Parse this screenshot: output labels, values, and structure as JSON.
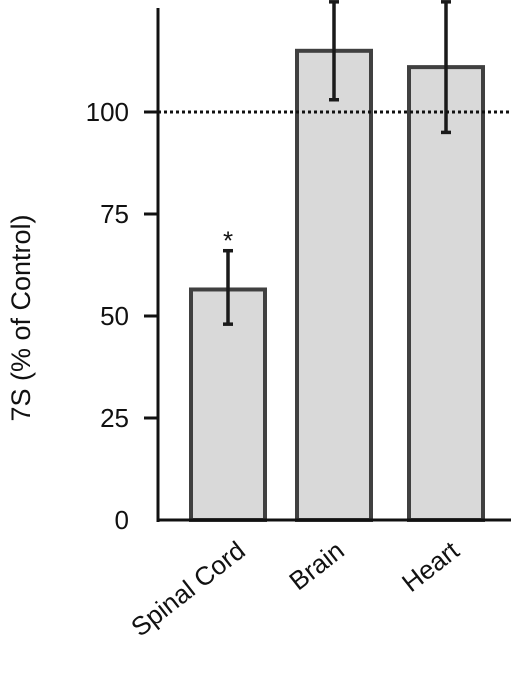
{
  "chart_data": {
    "type": "bar",
    "title": "",
    "xlabel": "",
    "ylabel": "7S (% of Control)",
    "categories": [
      "Spinal Cord",
      "Brain",
      "Heart"
    ],
    "values": [
      56.5,
      115,
      111
    ],
    "error_low": [
      48,
      103,
      95
    ],
    "error_high": [
      66,
      127,
      127
    ],
    "annotations": [
      "*",
      "",
      ""
    ],
    "yticks": [
      "0",
      "25",
      "50",
      "75",
      "100"
    ],
    "reference_line": 100,
    "ylim": [
      0,
      125
    ],
    "grid": false,
    "bar_color": "#d9d9d9",
    "edge_color": "#404040",
    "axis_color": "#111111"
  }
}
